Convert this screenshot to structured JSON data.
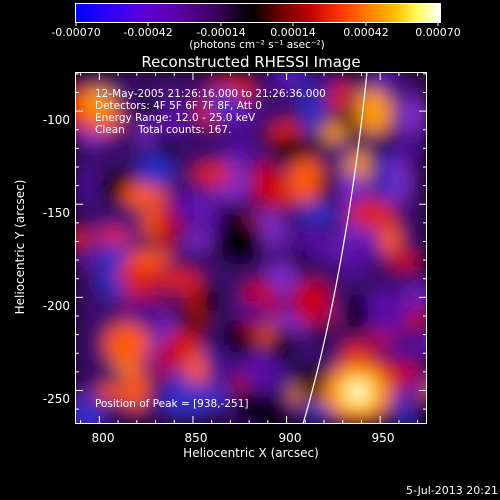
{
  "colorbar": {
    "ticks": [
      "-0.00070",
      "-0.00042",
      "-0.00014",
      "0.00014",
      "0.00042",
      "0.00070"
    ],
    "units": "(photons cm⁻² s⁻¹ asec⁻²)"
  },
  "plot": {
    "title": "Reconstructed RHESSI Image",
    "info_lines": [
      "12-May-2005 21:26:16.000 to 21:26:36.000",
      "Detectors: 4F 5F 6F 7F 8F, Att 0",
      "Energy Range: 12.0 - 25.0 keV",
      "Clean    Total counts: 167."
    ],
    "peak_text": "Position of Peak = [938,-251]"
  },
  "chart_data": {
    "type": "heatmap",
    "title": "Reconstructed RHESSI Image",
    "xlabel": "Heliocentric X (arcsec)",
    "ylabel": "Heliocentric Y (arcsec)",
    "xlim": [
      787,
      975
    ],
    "ylim": [
      -268,
      -79
    ],
    "xticks": [
      800,
      850,
      900,
      950
    ],
    "yticks": [
      -100,
      -150,
      -200,
      -250
    ],
    "colorbar_range": [
      -0.0007,
      0.0007
    ],
    "peak": [
      938,
      -251
    ],
    "colormap": "blue-purple-black-red-yellow-white"
  },
  "footer": {
    "date": "5-Jul-2013 20:21"
  }
}
